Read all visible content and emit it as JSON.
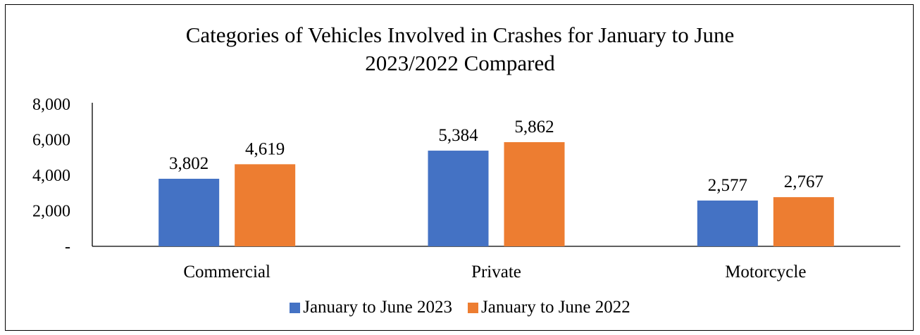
{
  "chart_data": {
    "type": "bar",
    "title_lines": [
      "Categories of Vehicles Involved in Crashes for January to June",
      "2023/2022 Compared"
    ],
    "categories": [
      "Commercial",
      "Private",
      "Motorcycle"
    ],
    "series": [
      {
        "name": "January to June 2023",
        "color": "#4472C4",
        "values": [
          3802,
          5384,
          2577
        ],
        "labels": [
          "3,802",
          "5,384",
          "2,577"
        ]
      },
      {
        "name": "January to June 2022",
        "color": "#ED7D31",
        "values": [
          4619,
          5862,
          2767
        ],
        "labels": [
          "4,619",
          "5,862",
          "2,767"
        ]
      }
    ],
    "ylim": [
      0,
      8000
    ],
    "yticks": [
      0,
      2000,
      4000,
      6000,
      8000
    ],
    "ytick_labels": [
      "-",
      "2,000",
      "4,000",
      "6,000",
      "8,000"
    ],
    "grid": false,
    "legend": "bottom"
  }
}
